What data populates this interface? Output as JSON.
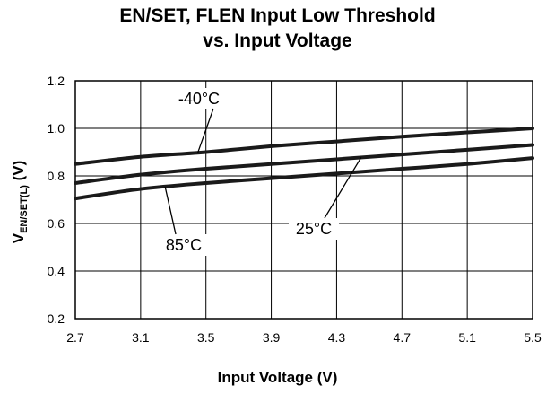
{
  "chart_data": {
    "type": "line",
    "title_line1": "EN/SET, FLEN Input Low Threshold",
    "title_line2": "vs. Input Voltage",
    "xlabel": "Input Voltage (V)",
    "ylabel_main": "V",
    "ylabel_sub": "EN/SET(L)",
    "ylabel_unit": " (V)",
    "xlim": [
      2.7,
      5.5
    ],
    "ylim": [
      0.2,
      1.2
    ],
    "xticks": [
      "2.7",
      "3.1",
      "3.5",
      "3.9",
      "4.3",
      "4.7",
      "5.1",
      "5.5"
    ],
    "yticks": [
      "0.2",
      "0.4",
      "0.6",
      "0.8",
      "1.0",
      "1.2"
    ],
    "grid": true,
    "series": [
      {
        "name": "-40°C",
        "x": [
          2.7,
          3.1,
          3.5,
          3.9,
          4.3,
          4.7,
          5.1,
          5.5
        ],
        "y": [
          0.85,
          0.88,
          0.9,
          0.925,
          0.945,
          0.965,
          0.983,
          1.0
        ]
      },
      {
        "name": "25°C",
        "x": [
          2.7,
          3.1,
          3.5,
          3.9,
          4.3,
          4.7,
          5.1,
          5.5
        ],
        "y": [
          0.77,
          0.805,
          0.83,
          0.85,
          0.87,
          0.89,
          0.91,
          0.93
        ]
      },
      {
        "name": "85°C",
        "x": [
          2.7,
          3.1,
          3.5,
          3.9,
          4.3,
          4.7,
          5.1,
          5.5
        ],
        "y": [
          0.705,
          0.745,
          0.77,
          0.79,
          0.81,
          0.83,
          0.85,
          0.875
        ]
      }
    ]
  }
}
